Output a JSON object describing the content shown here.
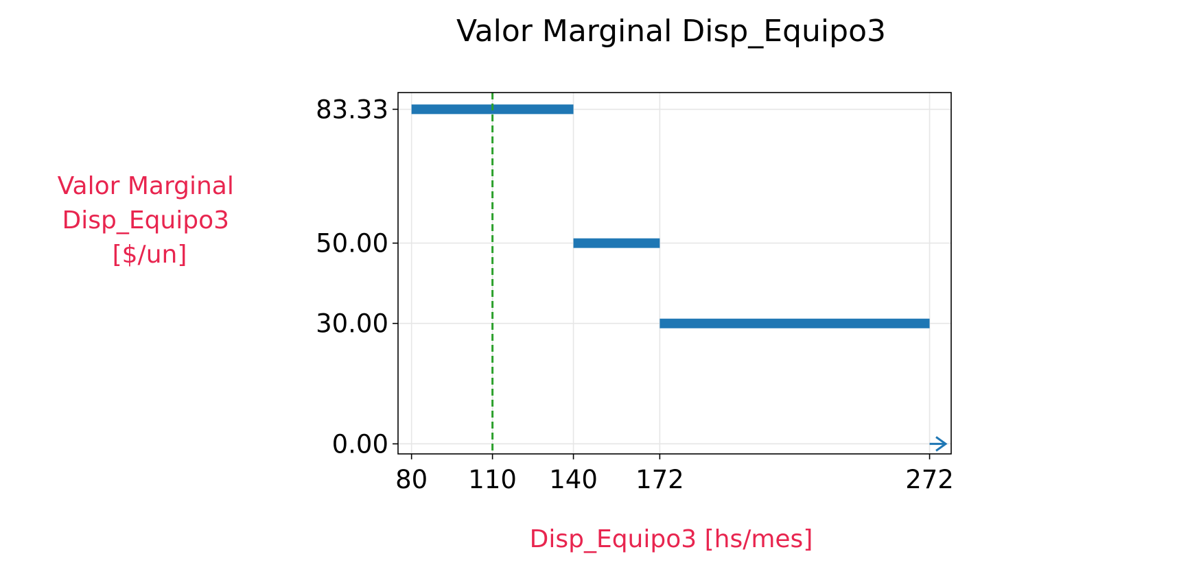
{
  "chart_data": {
    "type": "line",
    "title": "Valor Marginal Disp_Equipo3",
    "xlabel": "Disp_Equipo3 [hs/mes]",
    "ylabel_lines": [
      "Valor Marginal",
      "Disp_Equipo3",
      "[$/un]"
    ],
    "xlim": [
      75,
      280
    ],
    "ylim": [
      -2.5,
      87.5
    ],
    "x_ticks": [
      80,
      110,
      140,
      172,
      272
    ],
    "x_tick_labels": [
      "80",
      "110",
      "140",
      "172",
      "272"
    ],
    "y_ticks": [
      0,
      30,
      50,
      83.33
    ],
    "y_tick_labels": [
      "0.00",
      "30.00",
      "50.00",
      "83.33"
    ],
    "grid": true,
    "series": [
      {
        "style": "step-segments",
        "segments": [
          {
            "x_start": 80,
            "x_end": 140,
            "y": 83.33
          },
          {
            "x_start": 140,
            "x_end": 172,
            "y": 50
          },
          {
            "x_start": 172,
            "x_end": 272,
            "y": 30
          }
        ]
      }
    ],
    "reference_line": {
      "axis": "x",
      "value": 110,
      "style": "dashed"
    },
    "arrow": {
      "x_start": 272,
      "x_end": 280,
      "y": 0
    }
  },
  "colors": {
    "series": "#1f77b4",
    "reference_line": "#2ca02c",
    "axis_label": "#e8254f",
    "grid": "#e6e6e6"
  }
}
